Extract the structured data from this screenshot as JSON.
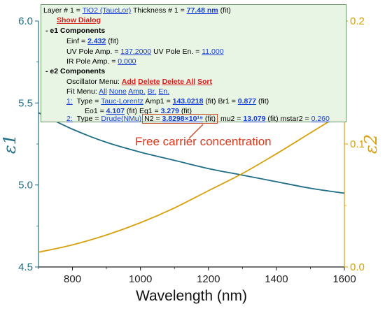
{
  "chart_data": {
    "type": "line",
    "xlabel": "Wavelength (nm)",
    "xlim": [
      700,
      1600
    ],
    "xticks": [
      "800",
      "1000",
      "1200",
      "1400",
      "1600"
    ],
    "ylabel_left": "ε1",
    "ylim_left": [
      4.5,
      6.0
    ],
    "yticks_left": [
      "4.5",
      "5.0",
      "5.5",
      "6.0"
    ],
    "ylabel_right": "ε2",
    "ylim_right": [
      0.0,
      0.2
    ],
    "yticks_right": [
      "0.0",
      "0.1",
      "0.2"
    ],
    "grid": false,
    "series": [
      {
        "axis": "left",
        "color": "#1f6e86",
        "x": [
          700,
          800,
          900,
          1000,
          1100,
          1200,
          1300,
          1400,
          1500,
          1600
        ],
        "y": [
          5.44,
          5.34,
          5.26,
          5.2,
          5.15,
          5.1,
          5.06,
          5.02,
          4.98,
          4.95
        ]
      },
      {
        "axis": "right",
        "color": "#d8a00c",
        "x": [
          700,
          800,
          900,
          1000,
          1100,
          1200,
          1300,
          1400,
          1500,
          1600
        ],
        "y": [
          0.012,
          0.018,
          0.026,
          0.036,
          0.048,
          0.062,
          0.076,
          0.092,
          0.109,
          0.126
        ]
      }
    ],
    "annotation": "Free carrier concentration"
  },
  "panel": {
    "layer_line": {
      "prefix": "Layer # 1 =",
      "material": "TiO2 (TaucLor)",
      "thickness_label": "Thickness # 1 =",
      "thickness_value": "77.48 nm",
      "thickness_fit": "(fit)"
    },
    "show_dialog": "Show Dialog",
    "e1_header": "- e1 Components",
    "einf": {
      "label": "Einf =",
      "value": "2.432",
      "fit": "(fit)"
    },
    "uv": {
      "amp_label": "UV Pole Amp. =",
      "amp_value": "137.2000",
      "en_label": "UV Pole En. =",
      "en_value": "11.000"
    },
    "ir": {
      "label": "IR Pole Amp. =",
      "value": "0.000"
    },
    "e2_header": "- e2 Components",
    "osc_menu": {
      "label": "Oscillator Menu:",
      "add": "Add",
      "delete": "Delete",
      "delete_all": "Delete All",
      "sort": "Sort"
    },
    "fit_menu": {
      "label": "Fit Menu:",
      "items": [
        "All",
        "None",
        "Amp.",
        "Br.",
        "En."
      ]
    },
    "osc1": {
      "index": "1:",
      "type_label": "Type =",
      "type": "Tauc-Lorentz",
      "amp_label": "Amp1 =",
      "amp": "143.0218",
      "amp_fit": "(fit)",
      "br_label": "Br1 =",
      "br": "0.877",
      "br_fit": "(fit)"
    },
    "osc1b": {
      "eo_label": "Eo1 =",
      "eo": "4.107",
      "eo_fit": "(fit)",
      "eg_label": "Eg1 =",
      "eg": "3.279",
      "eg_fit": "(fit)"
    },
    "osc2": {
      "index": "2:",
      "type_label": "Type =",
      "type": "Drude(NMu)",
      "n2_label": "N2 =",
      "n2": "3.8298×10¹⁹",
      "n2_fit": "(fit)",
      "mu_label": "mu2 =",
      "mu": "13.079",
      "mu_fit": "(fit)",
      "mstar_label": "mstar2 =",
      "mstar": "0.260"
    }
  }
}
